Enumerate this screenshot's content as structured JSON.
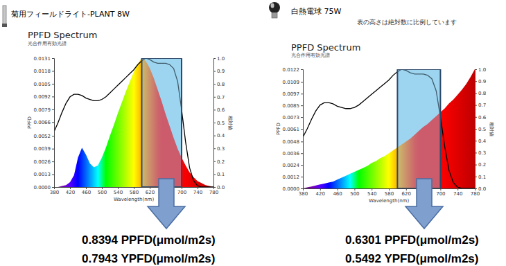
{
  "chart_data": [
    {
      "type": "area",
      "lamp": "菊用フィールドライト-PLANT 8W",
      "title": "PPFD Spectrum",
      "subtitle": "光合作用有効光譜",
      "x_label": "Wavelength(nm)",
      "y_label": "PPFD",
      "y2_label": "相対値",
      "grid": false,
      "x": [
        380,
        390,
        400,
        410,
        420,
        430,
        440,
        450,
        460,
        470,
        480,
        490,
        500,
        510,
        520,
        530,
        540,
        550,
        560,
        570,
        580,
        590,
        600,
        610,
        620,
        630,
        640,
        650,
        660,
        670,
        680,
        690,
        700,
        710,
        720,
        730,
        740,
        750,
        760,
        770,
        780
      ],
      "series": [
        {
          "type": "area",
          "values": [
            0.0,
            0.0,
            0.0001,
            0.0002,
            0.0005,
            0.0012,
            0.003,
            0.004,
            0.0033,
            0.0024,
            0.002,
            0.0022,
            0.003,
            0.004,
            0.0052,
            0.0063,
            0.0075,
            0.0086,
            0.0097,
            0.0107,
            0.0117,
            0.0125,
            0.0131,
            0.0128,
            0.0121,
            0.0111,
            0.0099,
            0.0087,
            0.0074,
            0.0062,
            0.005,
            0.0039,
            0.003,
            0.0022,
            0.0015,
            0.001,
            0.0006,
            0.0004,
            0.0002,
            0.0001,
            0.0
          ]
        },
        {
          "type": "line",
          "axis": "y2",
          "color": "#000000",
          "values": [
            0.43,
            0.5,
            0.58,
            0.65,
            0.7,
            0.72,
            0.72,
            0.71,
            0.69,
            0.68,
            0.67,
            0.67,
            0.68,
            0.7,
            0.73,
            0.76,
            0.79,
            0.82,
            0.85,
            0.88,
            0.91,
            0.95,
            0.98,
            1.0,
            0.99,
            0.97,
            0.96,
            0.96,
            0.96,
            0.95,
            0.92,
            0.82,
            0.6,
            0.35,
            0.15,
            0.05,
            0.01,
            0.0,
            0.0,
            0.0,
            0.0
          ]
        }
      ],
      "xlim": [
        380,
        780
      ],
      "xticks": [
        380,
        420,
        460,
        500,
        540,
        580,
        620,
        660,
        700,
        740,
        780
      ],
      "ylim": [
        0,
        0.0131
      ],
      "yticks": [
        {
          "value": 0,
          "label": "0.0000"
        },
        0.0013,
        0.0026,
        0.0039,
        0.0052,
        0.0066,
        0.0079,
        0.0092,
        0.0105,
        0.0118,
        0.0131
      ],
      "y2lim": [
        0,
        1
      ],
      "y2ticks": [
        {
          "value": 0,
          "label": "0.0"
        },
        0.1,
        0.2,
        0.3,
        0.4,
        0.5,
        0.6,
        0.7,
        0.8,
        0.9,
        {
          "value": 1,
          "label": "1.0"
        }
      ],
      "highlight_range": [
        600,
        700
      ],
      "annotations": [
        "0.8394 PPFD(μmol/m2s)",
        "0.7943 YPFD(μmol/m2s)"
      ]
    },
    {
      "type": "area",
      "lamp": "白熱電球 75W",
      "note": "表の高さは絶対数に比例しています",
      "title": "PPFD Spectrum",
      "subtitle": "光合作用有効光譜",
      "x_label": "Wavelength(nm)",
      "y_label": "PPFD",
      "y2_label": "相対値",
      "grid": false,
      "x": [
        380,
        390,
        400,
        410,
        420,
        430,
        440,
        450,
        460,
        470,
        480,
        490,
        500,
        510,
        520,
        530,
        540,
        550,
        560,
        570,
        580,
        590,
        600,
        610,
        620,
        630,
        640,
        650,
        660,
        670,
        680,
        690,
        700,
        710,
        720,
        730,
        740,
        750,
        760,
        770,
        780
      ],
      "series": [
        {
          "type": "area",
          "values": [
            0.0,
            0.0001,
            0.0002,
            0.0003,
            0.0004,
            0.0005,
            0.0006,
            0.0007,
            0.0009,
            0.0011,
            0.0013,
            0.0015,
            0.0017,
            0.0019,
            0.0021,
            0.0023,
            0.0026,
            0.0028,
            0.0031,
            0.0033,
            0.0036,
            0.0039,
            0.0042,
            0.0045,
            0.0048,
            0.0051,
            0.0055,
            0.0059,
            0.0063,
            0.0066,
            0.007,
            0.0074,
            0.0078,
            0.0082,
            0.0087,
            0.0091,
            0.0096,
            0.0101,
            0.0107,
            0.0114,
            0.0122
          ]
        },
        {
          "type": "line",
          "axis": "y2",
          "color": "#000000",
          "values": [
            0.43,
            0.5,
            0.58,
            0.65,
            0.7,
            0.72,
            0.72,
            0.71,
            0.69,
            0.68,
            0.67,
            0.67,
            0.68,
            0.7,
            0.73,
            0.76,
            0.79,
            0.82,
            0.85,
            0.88,
            0.91,
            0.95,
            0.98,
            1.0,
            0.99,
            0.97,
            0.96,
            0.96,
            0.96,
            0.95,
            0.92,
            0.82,
            0.6,
            0.35,
            0.15,
            0.05,
            0.01,
            0.0,
            0.0,
            0.0,
            0.0
          ]
        }
      ],
      "xlim": [
        380,
        780
      ],
      "xticks": [
        380,
        420,
        460,
        500,
        540,
        580,
        620,
        660,
        700,
        740,
        780
      ],
      "ylim": [
        0,
        0.0122
      ],
      "yticks": [
        {
          "value": 0,
          "label": "0.0000"
        },
        0.0012,
        0.0024,
        0.0036,
        0.0048,
        0.0061,
        0.0073,
        0.0085,
        0.0097,
        0.0109,
        0.0122
      ],
      "y2lim": [
        0,
        1
      ],
      "y2ticks": [
        {
          "value": 0,
          "label": "0.0"
        },
        0.1,
        0.2,
        0.3,
        0.4,
        0.5,
        0.6,
        0.7,
        0.8,
        0.9,
        {
          "value": 1,
          "label": "1.0"
        }
      ],
      "highlight_range": [
        600,
        700
      ],
      "annotations": [
        "0.6301 PPFD(μmol/m2s)",
        "0.5492 YPFD(μmol/m2s)"
      ]
    }
  ]
}
